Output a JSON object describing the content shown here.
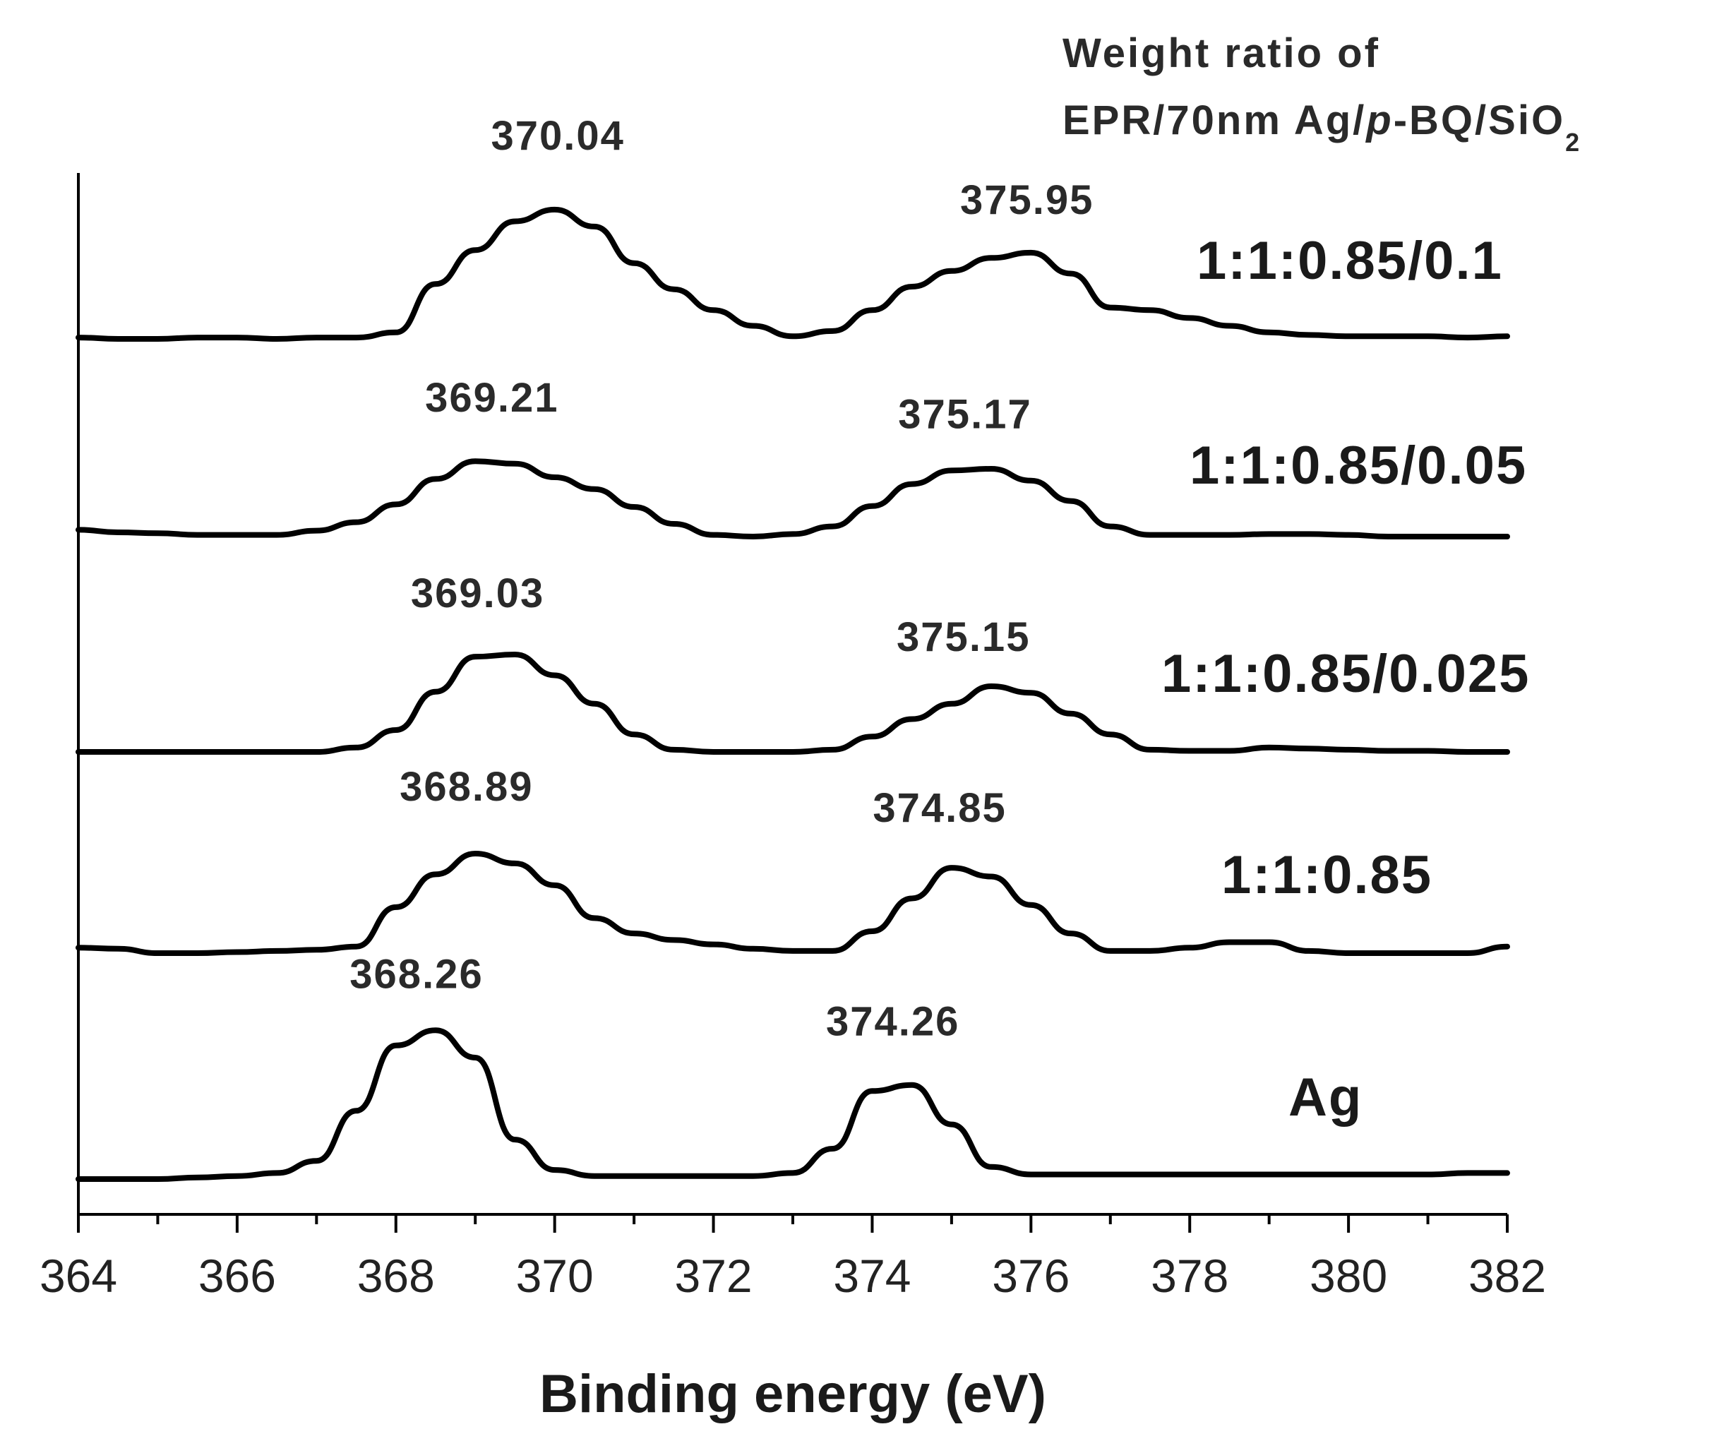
{
  "chart_data": {
    "type": "line",
    "title": "",
    "xlabel": "Binding energy (eV)",
    "ylabel": "",
    "xlim": [
      364,
      382
    ],
    "xticks": [
      "364",
      "366",
      "368",
      "370",
      "372",
      "374",
      "376",
      "378",
      "380",
      "382"
    ],
    "legend_title": {
      "line1": "Weight ratio of",
      "line2_prefix": "EPR/70nm Ag/",
      "line2_italic": "p",
      "line2_suffix": "-BQ/SiO",
      "line2_subscript": "2"
    },
    "series": [
      {
        "name": "1:1:0.85/0.1",
        "peaks": [
          {
            "x": 370.04,
            "label": "370.04"
          },
          {
            "x": 375.95,
            "label": "375.95"
          }
        ],
        "x": [
          364,
          364.5,
          365,
          365.5,
          366,
          366.5,
          367,
          367.5,
          368,
          368.5,
          369,
          369.5,
          370,
          370.5,
          371,
          371.5,
          372,
          372.5,
          373,
          373.5,
          374,
          374.5,
          375,
          375.5,
          376,
          376.5,
          377,
          377.5,
          378,
          378.5,
          379,
          379.5,
          380,
          380.5,
          381,
          381.5,
          382
        ],
        "y": [
          0.01,
          0.0,
          0.0,
          0.01,
          0.01,
          0.0,
          0.01,
          0.01,
          0.05,
          0.42,
          0.68,
          0.9,
          0.99,
          0.86,
          0.58,
          0.38,
          0.22,
          0.1,
          0.02,
          0.06,
          0.22,
          0.4,
          0.52,
          0.62,
          0.66,
          0.5,
          0.24,
          0.22,
          0.16,
          0.1,
          0.05,
          0.03,
          0.02,
          0.02,
          0.02,
          0.01,
          0.02
        ]
      },
      {
        "name": "1:1:0.85/0.05",
        "peaks": [
          {
            "x": 369.21,
            "label": "369.21"
          },
          {
            "x": 375.17,
            "label": "375.17"
          }
        ],
        "x": [
          364,
          364.5,
          365,
          365.5,
          366,
          366.5,
          367,
          367.5,
          368,
          368.5,
          369,
          369.5,
          370,
          370.5,
          371,
          371.5,
          372,
          372.5,
          373,
          373.5,
          374,
          374.5,
          375,
          375.5,
          376,
          376.5,
          377,
          377.5,
          378,
          378.5,
          379,
          379.5,
          380,
          380.5,
          381,
          381.5,
          382
        ],
        "y": [
          0.08,
          0.05,
          0.04,
          0.02,
          0.02,
          0.02,
          0.07,
          0.17,
          0.38,
          0.68,
          0.89,
          0.86,
          0.7,
          0.56,
          0.35,
          0.15,
          0.02,
          0.0,
          0.03,
          0.12,
          0.36,
          0.62,
          0.78,
          0.8,
          0.66,
          0.42,
          0.12,
          0.02,
          0.02,
          0.02,
          0.03,
          0.03,
          0.02,
          0.0,
          0.0,
          0.0,
          0.0
        ]
      },
      {
        "name": "1:1:0.85/0.025",
        "peaks": [
          {
            "x": 369.03,
            "label": "369.03"
          },
          {
            "x": 375.15,
            "label": "375.15"
          }
        ],
        "x": [
          364,
          364.5,
          365,
          365.5,
          366,
          366.5,
          367,
          367.5,
          368,
          368.5,
          369,
          369.5,
          370,
          370.5,
          371,
          371.5,
          372,
          372.5,
          373,
          373.5,
          374,
          374.5,
          375,
          375.5,
          376,
          376.5,
          377,
          377.5,
          378,
          378.5,
          379,
          379.5,
          380,
          380.5,
          381,
          381.5,
          382
        ],
        "y": [
          0.0,
          0.0,
          0.0,
          0.0,
          0.0,
          0.0,
          0.0,
          0.04,
          0.2,
          0.55,
          0.87,
          0.89,
          0.7,
          0.44,
          0.16,
          0.02,
          0.0,
          0.0,
          0.0,
          0.02,
          0.14,
          0.3,
          0.44,
          0.6,
          0.54,
          0.35,
          0.16,
          0.02,
          0.01,
          0.01,
          0.04,
          0.03,
          0.02,
          0.01,
          0.01,
          0.0,
          0.0
        ]
      },
      {
        "name": "1:1:0.85",
        "peaks": [
          {
            "x": 368.89,
            "label": "368.89"
          },
          {
            "x": 374.85,
            "label": "374.85"
          }
        ],
        "x": [
          364,
          364.5,
          365,
          365.5,
          366,
          366.5,
          367,
          367.5,
          368,
          368.5,
          369,
          369.5,
          370,
          370.5,
          371,
          371.5,
          372,
          372.5,
          373,
          373.5,
          374,
          374.5,
          375,
          375.5,
          376,
          376.5,
          377,
          377.5,
          378,
          378.5,
          379,
          379.5,
          380,
          380.5,
          381,
          381.5,
          382
        ],
        "y": [
          0.05,
          0.04,
          0.0,
          0.0,
          0.01,
          0.02,
          0.03,
          0.06,
          0.42,
          0.72,
          0.91,
          0.82,
          0.62,
          0.32,
          0.18,
          0.12,
          0.08,
          0.04,
          0.02,
          0.02,
          0.2,
          0.5,
          0.78,
          0.7,
          0.44,
          0.18,
          0.02,
          0.02,
          0.05,
          0.1,
          0.1,
          0.02,
          0.0,
          0.0,
          0.0,
          0.0,
          0.06
        ]
      },
      {
        "name": "Ag",
        "peaks": [
          {
            "x": 368.26,
            "label": "368.26"
          },
          {
            "x": 374.26,
            "label": "374.26"
          }
        ],
        "x": [
          364,
          364.5,
          365,
          365.5,
          366,
          366.5,
          367,
          367.5,
          368,
          368.5,
          369,
          369.5,
          370,
          370.5,
          371,
          371.5,
          372,
          372.5,
          373,
          373.5,
          374,
          374.5,
          375,
          375.5,
          376,
          376.5,
          377,
          377.5,
          378,
          378.5,
          379,
          379.5,
          380,
          380.5,
          381,
          381.5,
          382
        ],
        "y": [
          0.0,
          0.0,
          0.0,
          0.01,
          0.02,
          0.04,
          0.12,
          0.45,
          0.88,
          0.98,
          0.8,
          0.26,
          0.06,
          0.02,
          0.02,
          0.02,
          0.02,
          0.02,
          0.04,
          0.2,
          0.58,
          0.62,
          0.36,
          0.08,
          0.03,
          0.03,
          0.03,
          0.03,
          0.03,
          0.03,
          0.03,
          0.03,
          0.03,
          0.03,
          0.03,
          0.04,
          0.04
        ]
      }
    ]
  }
}
